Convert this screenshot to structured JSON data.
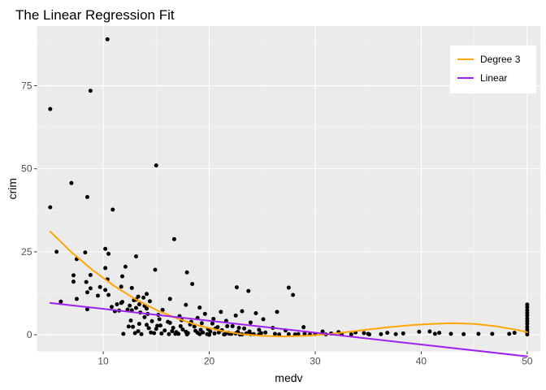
{
  "chart_data": {
    "type": "scatter",
    "title": "The Linear Regression Fit",
    "xlabel": "medv",
    "ylabel": "crim",
    "xlim": [
      3.75,
      51.25
    ],
    "ylim": [
      -5,
      93
    ],
    "x_ticks": [
      10,
      20,
      30,
      40,
      50
    ],
    "y_ticks": [
      0,
      25,
      50,
      75
    ],
    "grid": true,
    "legend_position": "top-right",
    "background": "#ebebeb",
    "points": [
      [
        10.4,
        89
      ],
      [
        8.8,
        73.5
      ],
      [
        5,
        68
      ],
      [
        15,
        51
      ],
      [
        7,
        45.7
      ],
      [
        8.5,
        41.5
      ],
      [
        5,
        38.4
      ],
      [
        10.9,
        37.7
      ],
      [
        16.7,
        28.8
      ],
      [
        10.2,
        25.9
      ],
      [
        5.6,
        25
      ],
      [
        8.3,
        24.8
      ],
      [
        10.5,
        24.4
      ],
      [
        13.1,
        23.6
      ],
      [
        7.5,
        22.8
      ],
      [
        12.1,
        20.5
      ],
      [
        10.2,
        20.1
      ],
      [
        14.9,
        19.6
      ],
      [
        17.9,
        18.8
      ],
      [
        8.8,
        18
      ],
      [
        7.2,
        17.9
      ],
      [
        11.8,
        17.6
      ],
      [
        10.4,
        16.7
      ],
      [
        7.2,
        16
      ],
      [
        8.4,
        15.9
      ],
      [
        18.4,
        15.3
      ],
      [
        11.7,
        14.5
      ],
      [
        9.7,
        14.4
      ],
      [
        22.6,
        14.3
      ],
      [
        27.5,
        14.2
      ],
      [
        12.7,
        14.1
      ],
      [
        8.8,
        14
      ],
      [
        10.2,
        13.5
      ],
      [
        23.7,
        13.2
      ],
      [
        8.5,
        12.8
      ],
      [
        14.1,
        12.3
      ],
      [
        27.9,
        12
      ],
      [
        9.5,
        11.8
      ],
      [
        13.3,
        11.5
      ],
      [
        13.8,
        11.2
      ],
      [
        7.5,
        10.8
      ],
      [
        13.1,
        10.6
      ],
      [
        14.4,
        10.1
      ],
      [
        16.3,
        10.8
      ],
      [
        11.8,
        9.9
      ],
      [
        11.7,
        9.6
      ],
      [
        13.4,
        9.2
      ],
      [
        6,
        10
      ],
      [
        10.8,
        8.4
      ],
      [
        12.5,
        8.8
      ],
      [
        13.9,
        8.7
      ],
      [
        17.8,
        9
      ],
      [
        14.1,
        7.9
      ],
      [
        8.5,
        7.7
      ],
      [
        12.7,
        7.4
      ],
      [
        11.1,
        7.1
      ],
      [
        13.5,
        6.7
      ],
      [
        19.1,
        8.2
      ],
      [
        15.6,
        7.5
      ],
      [
        21.1,
        6.9
      ],
      [
        19.6,
        6.3
      ],
      [
        15.2,
        6
      ],
      [
        17.2,
        5.6
      ],
      [
        22.5,
        5.8
      ],
      [
        24.4,
        6.5
      ],
      [
        23.1,
        7.1
      ],
      [
        26.4,
        6.9
      ],
      [
        18.9,
        5.1
      ],
      [
        20.4,
        4.8
      ],
      [
        17.4,
        4.4
      ],
      [
        14.6,
        4.1
      ],
      [
        16.1,
        3.9
      ],
      [
        25.1,
        4.7
      ],
      [
        21.6,
        4.2
      ],
      [
        23.9,
        3.7
      ],
      [
        19.3,
        3.5
      ],
      [
        13.4,
        3.3
      ],
      [
        18.2,
        3.1
      ],
      [
        15.4,
        2.8
      ],
      [
        22.2,
        2.6
      ],
      [
        20.8,
        2.3
      ],
      [
        16.6,
        2.1
      ],
      [
        14.3,
        2
      ],
      [
        12.8,
        2.4
      ],
      [
        23.3,
        1.9
      ],
      [
        19.9,
        1.7
      ],
      [
        17.5,
        1.6
      ],
      [
        24.7,
        1.5
      ],
      [
        21.2,
        1.4
      ],
      [
        15.8,
        1.3
      ],
      [
        18.7,
        1.2
      ],
      [
        13.3,
        1.1
      ],
      [
        20.1,
        1
      ],
      [
        22.7,
        0.9
      ],
      [
        16.9,
        0.8
      ],
      [
        19.4,
        0.7
      ],
      [
        25.3,
        0.7
      ],
      [
        21.8,
        0.6
      ],
      [
        18,
        0.5
      ],
      [
        14.8,
        0.5
      ],
      [
        23.5,
        0.4
      ],
      [
        20.5,
        0.4
      ],
      [
        17.1,
        0.3
      ],
      [
        22.1,
        0.3
      ],
      [
        24.2,
        0.2
      ],
      [
        19.1,
        0.2
      ],
      [
        16.2,
        0.2
      ],
      [
        21.4,
        0.1
      ],
      [
        26.6,
        0.1
      ],
      [
        23.1,
        0.1
      ],
      [
        20,
        0
      ],
      [
        28.1,
        0.1
      ],
      [
        29.5,
        0.1
      ],
      [
        31,
        0.1
      ],
      [
        32.5,
        0.1
      ],
      [
        33.4,
        0.1
      ],
      [
        35.1,
        0.1
      ],
      [
        29,
        0.3
      ],
      [
        31.5,
        0.4
      ],
      [
        30.7,
        1
      ],
      [
        27.2,
        1.3
      ],
      [
        26,
        2.1
      ],
      [
        28.9,
        2.3
      ],
      [
        35,
        0.3
      ],
      [
        36.2,
        0.2
      ],
      [
        37.6,
        0.2
      ],
      [
        41.3,
        0.3
      ],
      [
        42.8,
        0.3
      ],
      [
        44,
        0.2
      ],
      [
        45.4,
        0.3
      ],
      [
        46.7,
        0.3
      ],
      [
        48.3,
        0.3
      ],
      [
        48.8,
        0.6
      ],
      [
        50,
        0.1
      ],
      [
        50,
        0.8
      ],
      [
        50,
        1.6
      ],
      [
        50,
        2.4
      ],
      [
        50,
        3.3
      ],
      [
        50,
        4.1
      ],
      [
        50,
        4.9
      ],
      [
        50,
        5.8
      ],
      [
        50,
        6.6
      ],
      [
        50,
        7.4
      ],
      [
        50,
        8.3
      ],
      [
        50,
        9.1
      ],
      [
        40.8,
        1
      ],
      [
        39.8,
        0.9
      ],
      [
        41.7,
        0.6
      ],
      [
        32.2,
        0.8
      ],
      [
        13,
        0.5
      ],
      [
        11.9,
        0.3
      ],
      [
        12.4,
        2.5
      ],
      [
        13.9,
        5.3
      ],
      [
        12.6,
        4.3
      ],
      [
        14.1,
        3
      ],
      [
        15,
        1.8
      ],
      [
        16.5,
        1.1
      ],
      [
        17.8,
        0.9
      ],
      [
        18.6,
        2.5
      ],
      [
        20.3,
        3.4
      ],
      [
        21.5,
        0.2
      ],
      [
        22.5,
        0.4
      ],
      [
        23.8,
        1
      ],
      [
        24.9,
        0.5
      ],
      [
        26.2,
        0.3
      ],
      [
        27.5,
        0.2
      ],
      [
        28.4,
        0.2
      ],
      [
        30,
        0.2
      ],
      [
        33.8,
        0.7
      ],
      [
        34.6,
        0.5
      ],
      [
        36.8,
        0.6
      ],
      [
        38.3,
        0.4
      ],
      [
        13.6,
        0.2
      ],
      [
        14.5,
        0.7
      ],
      [
        15.5,
        0.4
      ],
      [
        16.8,
        0.3
      ],
      [
        17.9,
        0.1
      ],
      [
        18.9,
        0.6
      ],
      [
        19.8,
        0.2
      ],
      [
        20.9,
        0.7
      ],
      [
        21.9,
        0.3
      ],
      [
        22.9,
        0.1
      ],
      [
        23.9,
        0.2
      ],
      [
        24.7,
        0.1
      ],
      [
        15.1,
        2.7
      ],
      [
        16.3,
        3.6
      ],
      [
        17.3,
        2.6
      ],
      [
        18.3,
        3.9
      ],
      [
        19.2,
        1.5
      ],
      [
        20.6,
        1.9
      ],
      [
        21.7,
        2.6
      ],
      [
        22.8,
        2.1
      ],
      [
        14.2,
        6.3
      ],
      [
        15.3,
        4.7
      ],
      [
        12.3,
        7.6
      ],
      [
        13.1,
        8.1
      ],
      [
        11.3,
        9.2
      ],
      [
        11.5,
        7.3
      ],
      [
        12.9,
        10.4
      ],
      [
        10.5,
        12
      ]
    ],
    "series": [
      {
        "name": "Degree 3",
        "color": "#ffa500",
        "x": [
          5,
          7,
          9,
          11,
          13,
          15,
          17,
          19,
          21,
          23,
          25,
          27,
          29,
          31,
          33,
          35,
          37,
          39,
          41,
          43,
          45,
          47,
          49,
          50
        ],
        "y": [
          31.1,
          24.9,
          19.5,
          14.8,
          10.8,
          7.5,
          4.9,
          2.8,
          1.3,
          0.2,
          -0.3,
          -0.5,
          -0.3,
          0.1,
          0.8,
          1.6,
          2.3,
          2.9,
          3.3,
          3.5,
          3.3,
          2.6,
          1.5,
          0.8
        ]
      },
      {
        "name": "Linear",
        "color": "#a020f0",
        "x": [
          5,
          50
        ],
        "y": [
          9.6,
          -6.5
        ]
      }
    ]
  }
}
